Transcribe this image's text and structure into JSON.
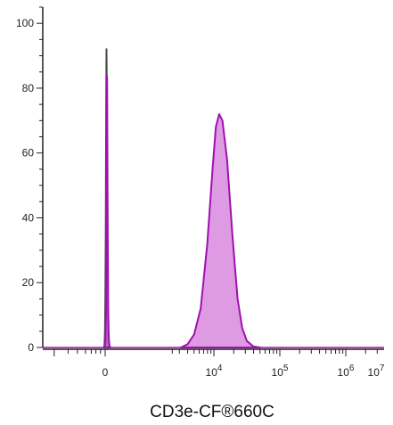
{
  "chart_data": {
    "type": "area",
    "title": "",
    "xlabel": "CD3e-CF®660C",
    "ylabel": "",
    "x_scale": "biexponential",
    "ylim": [
      0,
      105
    ],
    "grid": false,
    "legend": "none",
    "y_ticks": [
      {
        "value": 0,
        "label": "0"
      },
      {
        "value": 20,
        "label": "20"
      },
      {
        "value": 40,
        "label": "40"
      },
      {
        "value": 60,
        "label": "60"
      },
      {
        "value": 80,
        "label": "80"
      },
      {
        "value": 100,
        "label": "100"
      }
    ],
    "x_ticks": [
      {
        "value": 0,
        "base": "0",
        "exp": ""
      },
      {
        "value": 10000,
        "base": "10",
        "exp": "4"
      },
      {
        "value": 100000,
        "base": "10",
        "exp": "5"
      },
      {
        "value": 1000000,
        "base": "10",
        "exp": "6"
      },
      {
        "value": 10000000,
        "base": "10",
        "exp": "7"
      }
    ],
    "series": [
      {
        "role": "isotype-control",
        "stroke": "#4a4a4a",
        "fill": "#555555",
        "fill_opacity": 0.9,
        "points": [
          [
            -0.05,
            0
          ],
          [
            -0.03,
            1
          ],
          [
            -0.01,
            5
          ],
          [
            0.01,
            15
          ],
          [
            0.03,
            38
          ],
          [
            0.05,
            72
          ],
          [
            0.06,
            88
          ],
          [
            0.065,
            92
          ],
          [
            0.075,
            85
          ],
          [
            0.09,
            55
          ],
          [
            0.11,
            22
          ],
          [
            0.13,
            8
          ],
          [
            0.15,
            3
          ],
          [
            0.17,
            0
          ]
        ]
      },
      {
        "role": "CD3e-stained",
        "stroke": "#a010b0",
        "fill": "#d070d8",
        "fill_opacity": 0.7,
        "points": [
          [
            -0.02,
            0
          ],
          [
            0.01,
            2
          ],
          [
            0.04,
            10
          ],
          [
            0.06,
            35
          ],
          [
            0.075,
            70
          ],
          [
            0.085,
            84
          ],
          [
            0.095,
            82
          ],
          [
            0.11,
            60
          ],
          [
            0.13,
            30
          ],
          [
            0.15,
            12
          ],
          [
            0.17,
            5
          ],
          [
            0.19,
            2
          ],
          [
            0.22,
            0.5
          ],
          [
            0.25,
            0
          ],
          [
            3.5,
            0
          ],
          [
            3.6,
            1
          ],
          [
            3.7,
            4
          ],
          [
            3.8,
            12
          ],
          [
            3.9,
            32
          ],
          [
            3.98,
            55
          ],
          [
            4.03,
            68
          ],
          [
            4.08,
            72
          ],
          [
            4.13,
            70
          ],
          [
            4.2,
            58
          ],
          [
            4.28,
            35
          ],
          [
            4.36,
            15
          ],
          [
            4.43,
            6
          ],
          [
            4.5,
            2
          ],
          [
            4.6,
            0.3
          ],
          [
            4.7,
            0
          ]
        ]
      }
    ]
  }
}
